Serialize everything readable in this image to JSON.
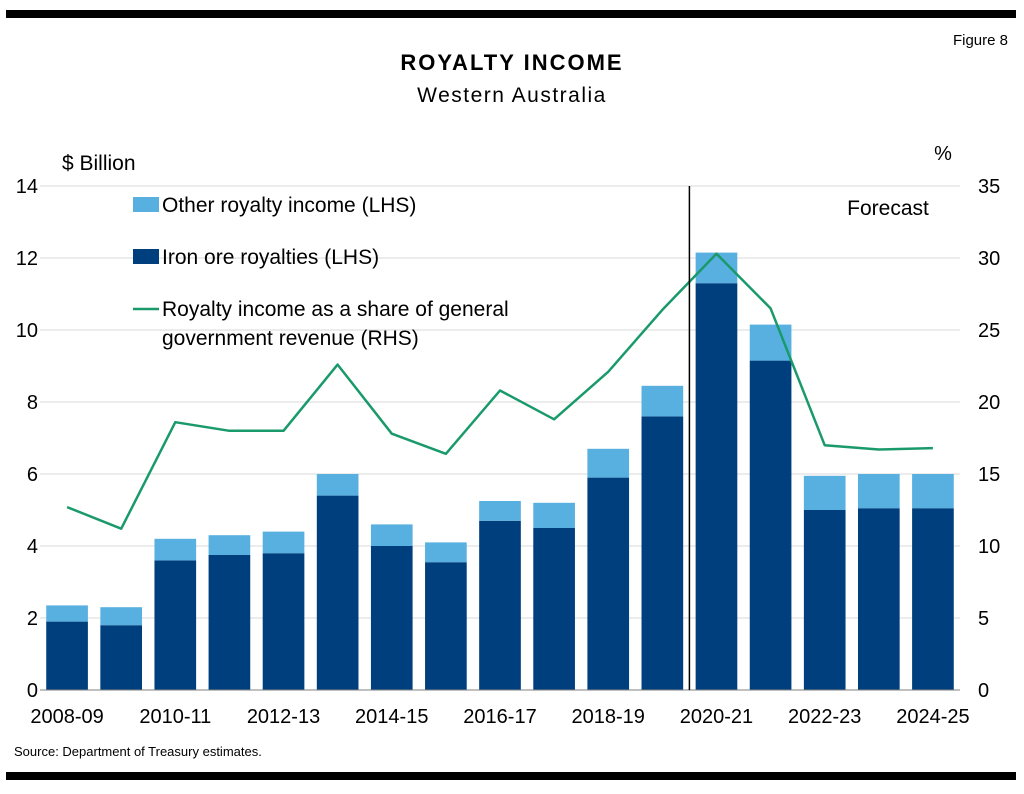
{
  "figure_label": "Figure 8",
  "source": "Source: Department of Treasury estimates.",
  "chart_data": {
    "type": "bar",
    "stacked": true,
    "title": "ROYALTY INCOME",
    "subtitle": "Western Australia",
    "ylabel": "$ Billion",
    "y2label": "%",
    "ylim": [
      0,
      14
    ],
    "y2lim": [
      0,
      35
    ],
    "yticks": [
      "0",
      "2",
      "4",
      "6",
      "8",
      "10",
      "12",
      "14"
    ],
    "y2ticks": [
      "0",
      "5",
      "10",
      "15",
      "20",
      "25",
      "30",
      "35"
    ],
    "grid": true,
    "legend_position": "top-left",
    "categories": [
      "2008-09",
      "2009-10",
      "2010-11",
      "2011-12",
      "2012-13",
      "2013-14",
      "2014-15",
      "2015-16",
      "2016-17",
      "2017-18",
      "2018-19",
      "2019-20",
      "2020-21",
      "2021-22",
      "2022-23",
      "2023-24",
      "2024-25"
    ],
    "xtick_labels": [
      "2008-09",
      "",
      "2010-11",
      "",
      "2012-13",
      "",
      "2014-15",
      "",
      "2016-17",
      "",
      "2018-19",
      "",
      "2020-21",
      "",
      "2022-23",
      "",
      "2024-25"
    ],
    "series": [
      {
        "name": "Iron ore royalties (LHS)",
        "axis": "left",
        "kind": "bar",
        "color": "#003f7d",
        "values": [
          1.9,
          1.8,
          3.6,
          3.75,
          3.8,
          5.4,
          4.0,
          3.55,
          4.7,
          4.5,
          5.9,
          7.6,
          11.3,
          9.15,
          5.0,
          5.05,
          5.05
        ]
      },
      {
        "name": "Other royalty income (LHS)",
        "axis": "left",
        "kind": "bar",
        "color": "#58b0e0",
        "values": [
          0.45,
          0.5,
          0.6,
          0.55,
          0.6,
          0.6,
          0.6,
          0.55,
          0.55,
          0.7,
          0.8,
          0.85,
          0.85,
          1.0,
          0.95,
          0.95,
          0.95
        ]
      },
      {
        "name": "Royalty income as a share of general government revenue (RHS)",
        "axis": "right",
        "kind": "line",
        "color": "#1a9a6b",
        "values": [
          12.7,
          11.2,
          18.6,
          18.0,
          18.0,
          22.6,
          17.8,
          16.4,
          20.8,
          18.8,
          22.1,
          26.4,
          30.3,
          26.5,
          17.0,
          16.7,
          16.8
        ]
      }
    ],
    "legend": [
      {
        "label": "Other royalty income (LHS)",
        "color": "#58b0e0",
        "kind": "bar"
      },
      {
        "label": "Iron ore royalties (LHS)",
        "color": "#003f7d",
        "kind": "bar"
      },
      {
        "label": "Royalty income as a share of general",
        "label2": "government revenue (RHS)",
        "color": "#1a9a6b",
        "kind": "line"
      }
    ],
    "annotations": [
      {
        "text": "Forecast",
        "forecast_from_category": "2020-21"
      }
    ]
  }
}
